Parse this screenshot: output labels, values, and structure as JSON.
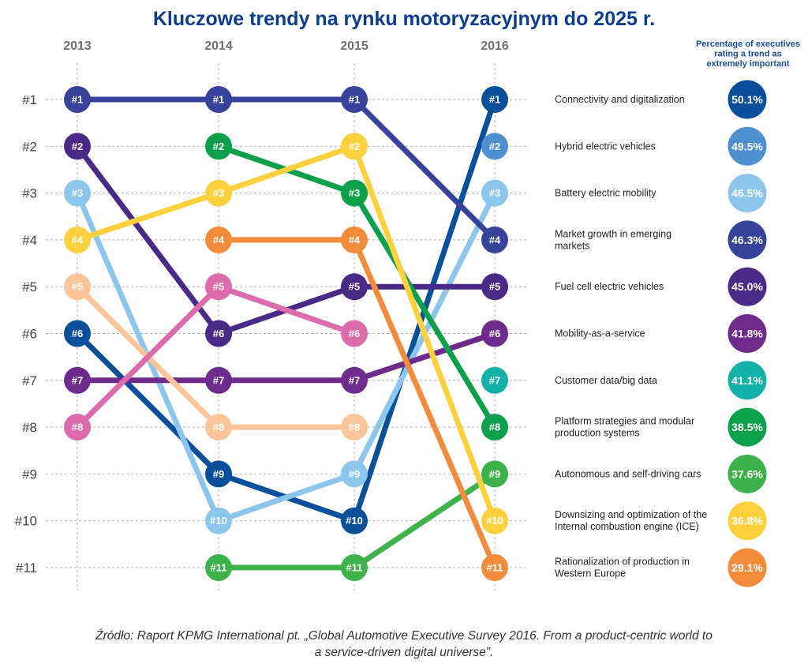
{
  "chart_data": {
    "type": "bump",
    "title": "Kluczowe trendy na rynku motoryzacyjnym do 2025 r.",
    "years": [
      "2013",
      "2014",
      "2015",
      "2016"
    ],
    "rank_labels": [
      "#1",
      "#2",
      "#3",
      "#4",
      "#5",
      "#6",
      "#7",
      "#8",
      "#9",
      "#10",
      "#11"
    ],
    "percentage_header": [
      "Percentage of executives",
      "rating a trend as",
      "extremely important"
    ],
    "grid": true,
    "series": [
      {
        "name": "Connectivity and digitalization",
        "name_lines": [
          "Connectivity and digitalization"
        ],
        "ranks": [
          6,
          9,
          10,
          1
        ],
        "percentage": "50.1%",
        "color": "#0a4f9a"
      },
      {
        "name": "Hybrid electric vehicles",
        "name_lines": [
          "Hybrid electric vehicles"
        ],
        "ranks": [
          null,
          null,
          null,
          2
        ],
        "percentage": "49.5%",
        "color": "#4e8fd0"
      },
      {
        "name": "Battery electric mobility",
        "name_lines": [
          "Battery electric mobility"
        ],
        "ranks": [
          3,
          10,
          9,
          3
        ],
        "percentage": "46.5%",
        "color": "#8cc6ec"
      },
      {
        "name": "Market growth in emerging markets",
        "name_lines": [
          "Market growth in emerging",
          "markets"
        ],
        "ranks": [
          1,
          1,
          1,
          4
        ],
        "percentage": "46.3%",
        "color": "#37439a"
      },
      {
        "name": "Fuel cell electric vehicles",
        "name_lines": [
          "Fuel cell electric vehicles"
        ],
        "ranks": [
          2,
          6,
          5,
          5
        ],
        "percentage": "45.0%",
        "color": "#4a2a86"
      },
      {
        "name": "Mobility-as-a-service",
        "name_lines": [
          "Mobility-as-a-service"
        ],
        "ranks": [
          7,
          7,
          7,
          6
        ],
        "percentage": "41.8%",
        "color": "#6e2b8b"
      },
      {
        "name": "Customer data/big data",
        "name_lines": [
          "Customer data/big data"
        ],
        "ranks": [
          null,
          null,
          null,
          7
        ],
        "percentage": "41.1%",
        "color": "#14b1a8"
      },
      {
        "name": "Platform strategies and modular production systems",
        "name_lines": [
          "Platform strategies and modular",
          "production systems"
        ],
        "ranks": [
          null,
          2,
          3,
          8
        ],
        "percentage": "38.5%",
        "color": "#0da04a"
      },
      {
        "name": "Autonomous and self-driving cars",
        "name_lines": [
          "Autonomous and self-driving cars"
        ],
        "ranks": [
          null,
          11,
          11,
          9
        ],
        "percentage": "37.6%",
        "color": "#3db24a"
      },
      {
        "name": "Downsizing and optimization of the Internal combustion engine (ICE)",
        "name_lines": [
          "Downsizing and optimization of the",
          "Internal combustion engine (ICE)"
        ],
        "ranks": [
          4,
          3,
          2,
          10
        ],
        "percentage": "36.8%",
        "color": "#fdd13e"
      },
      {
        "name": "Rationalization of production in Western Europe",
        "name_lines": [
          "Rationalization of production in",
          "Western Europe"
        ],
        "ranks": [
          null,
          4,
          4,
          11
        ],
        "percentage": "29.1%",
        "color": "#f28c3b"
      }
    ],
    "extra_series": [
      {
        "ranks": [
          5,
          8,
          8,
          null
        ],
        "color": "#fbc499"
      },
      {
        "ranks": [
          8,
          5,
          6,
          null
        ],
        "color": "#dc6cab"
      }
    ]
  },
  "source": {
    "line1": "Źródło: Raport KPMG International pt. „Global Automotive Executive Survey 2016. From a product-centric world to",
    "line2": "a service-driven digital universe”."
  }
}
